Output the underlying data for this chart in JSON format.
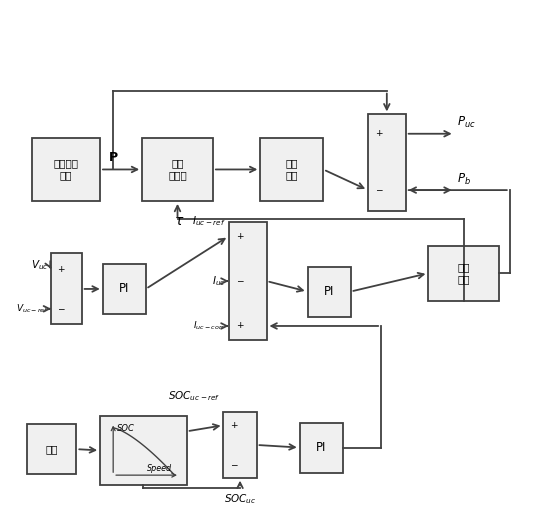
{
  "fig_width": 5.52,
  "fig_height": 5.28,
  "dpi": 100,
  "background_color": "#ffffff",
  "line_color": "#404040",
  "box_color": "#f0f0f0",
  "box_edge_color": "#404040",
  "text_color": "#000000",
  "motor_label": "电机需求\n功率",
  "lpf_label": "低通\n滤波器",
  "sat_lim_label": "饱和\n限幅",
  "sat_q_label": "饱和\n量化",
  "gongkuang_label": "工况",
  "pi_label": "PI"
}
